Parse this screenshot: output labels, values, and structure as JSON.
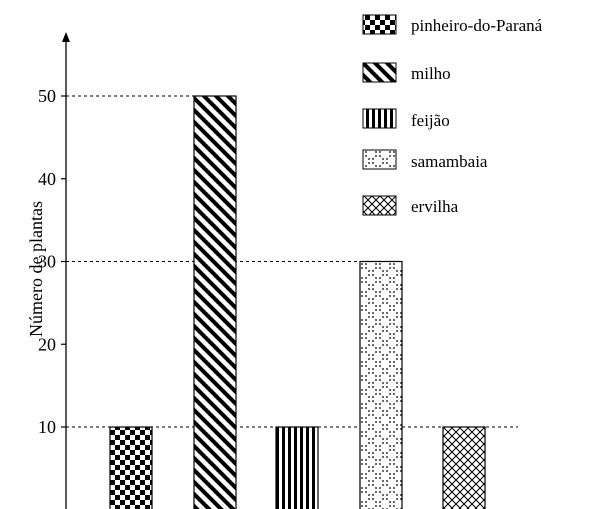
{
  "chart_data": {
    "type": "bar",
    "categories": [
      "pinheiro-do-Paraná",
      "milho",
      "feijão",
      "samambaia",
      "ervilha"
    ],
    "values": [
      10,
      50,
      10,
      30,
      10
    ],
    "title": "",
    "xlabel": "",
    "ylabel": "Número de plantas",
    "ylim": [
      0,
      57
    ],
    "yticks": [
      "10",
      "20",
      "30",
      "40",
      "50"
    ],
    "reference_lines_at": [
      10,
      30,
      50
    ],
    "legend": {
      "placement": "top-right",
      "entries": [
        {
          "label": "pinheiro-do-Paraná",
          "pattern": "checkerboard"
        },
        {
          "label": "milho",
          "pattern": "diagonal-stripes"
        },
        {
          "label": "feijão",
          "pattern": "vertical-stripes"
        },
        {
          "label": "samambaia",
          "pattern": "dotted-diagonal"
        },
        {
          "label": "ervilha",
          "pattern": "crosshatch"
        }
      ]
    }
  }
}
